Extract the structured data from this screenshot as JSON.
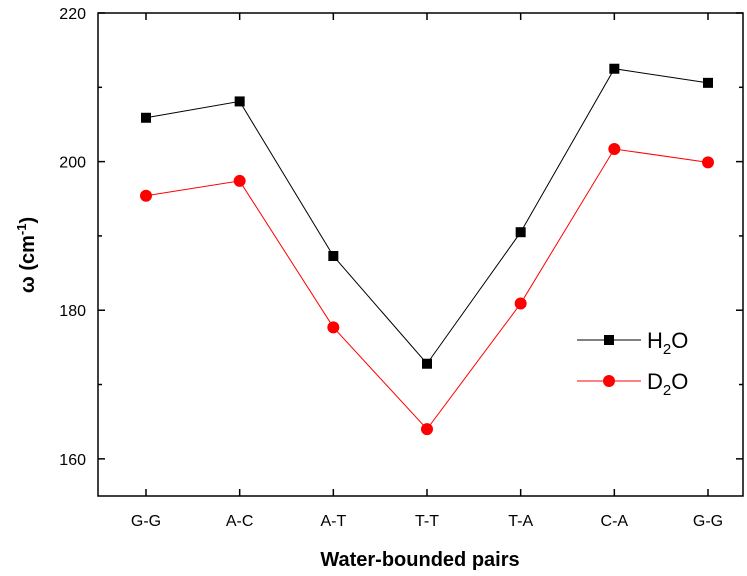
{
  "chart_data": {
    "type": "line",
    "title": "",
    "categories": [
      "G-G",
      "A-C",
      "A-T",
      "T-T",
      "T-A",
      "C-A",
      "G-G"
    ],
    "xlabel": "Water-bounded pairs",
    "ylabel": {
      "symbol": "ω",
      "open": " (cm",
      "exponent": "-1",
      "close": ")"
    },
    "ylim": [
      155,
      220
    ],
    "yticks": [
      160,
      180,
      200,
      220
    ],
    "yminor_ticks": [
      170,
      190,
      210
    ],
    "grid": false,
    "legend_position": "right",
    "series": [
      {
        "name": {
          "base": "H",
          "sub": "2",
          "rest": "O"
        },
        "color": "#000000",
        "marker": "square",
        "values": [
          205.9,
          208.1,
          187.3,
          172.8,
          190.5,
          212.5,
          210.6
        ]
      },
      {
        "name": {
          "base": "D",
          "sub": "2",
          "rest": "O"
        },
        "color": "#ff0000",
        "marker": "circle",
        "values": [
          195.4,
          197.4,
          177.7,
          164.0,
          180.9,
          201.7,
          199.9
        ]
      }
    ]
  }
}
